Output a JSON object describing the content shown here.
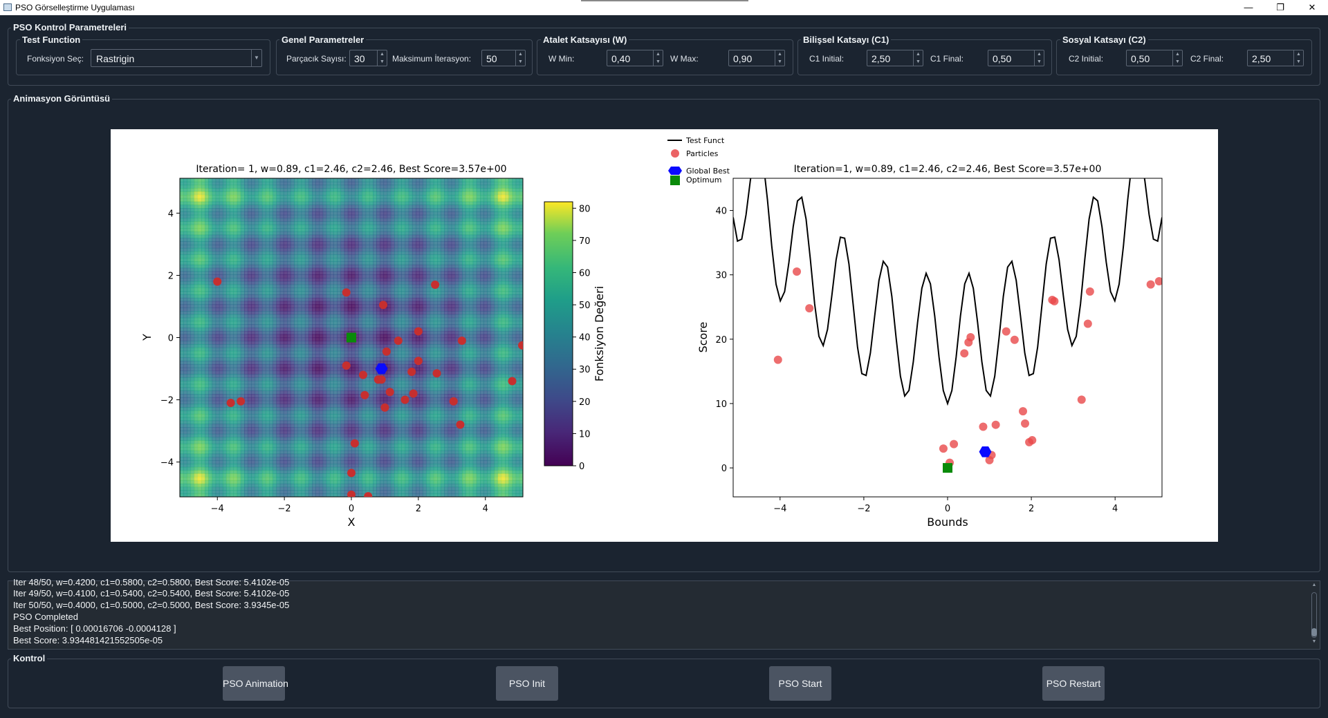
{
  "window": {
    "title": "PSO Görselleştirme Uygulaması",
    "minimize": "—",
    "restore": "❐",
    "close": "✕"
  },
  "controls": {
    "title": "PSO Kontrol Parametreleri",
    "test_function": {
      "title": "Test Function",
      "label": "Fonksiyon Seç:",
      "value": "Rastrigin"
    },
    "general": {
      "title": "Genel Parametreler",
      "particles_label": "Parçacık Sayısı:",
      "particles": "30",
      "iter_label": "Maksimum İterasyon:",
      "iter": "50"
    },
    "inertia": {
      "title": "Atalet Katsayısı (W)",
      "wmin_label": "W Min:",
      "wmin": "0,40",
      "wmax_label": "W Max:",
      "wmax": "0,90"
    },
    "cognitive": {
      "title": "Bilişsel Katsayı (C1)",
      "initial_label": "C1 Initial:",
      "initial": "2,50",
      "final_label": "C1 Final:",
      "final": "0,50"
    },
    "social": {
      "title": "Sosyal Katsayı (C2)",
      "initial_label": "C2 Initial:",
      "initial": "0,50",
      "final_label": "C2 Final:",
      "final": "2,50"
    }
  },
  "animation": {
    "title": "Animasyon Görüntüsü"
  },
  "chart_data": [
    {
      "type": "heatmap",
      "title": "Iteration= 1, w=0.89, c1=2.46, c2=2.46, Best Score=3.57e+00",
      "xlabel": "X",
      "ylabel": "Y",
      "xlim": [
        -5.12,
        5.12
      ],
      "ylim": [
        -5.12,
        5.12
      ],
      "xticks": [
        "−4",
        "−2",
        "0",
        "2",
        "4"
      ],
      "yticks": [
        "4",
        "2",
        "0",
        "−2",
        "−4"
      ],
      "colorbar": {
        "label": "Fonksiyon Değeri",
        "range": [
          0,
          82
        ],
        "ticks": [
          "80",
          "70",
          "60",
          "50",
          "40",
          "30",
          "20",
          "10",
          "0"
        ]
      },
      "colormap": "viridis",
      "particle_color": "#c62f2f",
      "particles": [
        [
          -4.0,
          1.8
        ],
        [
          -0.15,
          1.45
        ],
        [
          0.95,
          1.05
        ],
        [
          2.5,
          1.7
        ],
        [
          2.0,
          0.2
        ],
        [
          3.3,
          -0.1
        ],
        [
          5.1,
          -0.25
        ],
        [
          1.4,
          -0.1
        ],
        [
          1.05,
          -0.45
        ],
        [
          2.0,
          -0.75
        ],
        [
          -0.15,
          -0.9
        ],
        [
          0.35,
          -1.2
        ],
        [
          0.8,
          -1.35
        ],
        [
          1.8,
          -1.1
        ],
        [
          2.55,
          -1.15
        ],
        [
          1.15,
          -1.75
        ],
        [
          0.4,
          -1.85
        ],
        [
          1.6,
          -2.0
        ],
        [
          1.85,
          -1.8
        ],
        [
          1.0,
          -2.25
        ],
        [
          3.05,
          -2.05
        ],
        [
          -3.6,
          -2.1
        ],
        [
          -3.3,
          -2.05
        ],
        [
          4.8,
          -1.4
        ],
        [
          3.25,
          -2.8
        ],
        [
          0.1,
          -3.4
        ],
        [
          0.0,
          -4.35
        ],
        [
          0.0,
          -5.05
        ],
        [
          0.5,
          -5.1
        ],
        [
          0.9,
          -1.35
        ]
      ],
      "global_best": [
        0.9,
        -1.0
      ],
      "optimum": [
        0.0,
        0.0
      ],
      "legend": {
        "placement": "top-right",
        "entries": [
          "Test Funct",
          "Particles",
          "Global Best",
          "Optimum"
        ]
      }
    },
    {
      "type": "line",
      "title": "Iteration=1, w=0.89, c1=2.46, c2=2.46, Best Score=3.57e+00",
      "xlabel": "Bounds",
      "ylabel": "Score",
      "xlim": [
        -5.12,
        5.12
      ],
      "ylim": [
        -4.5,
        45
      ],
      "xticks": [
        "−4",
        "−2",
        "0",
        "2",
        "4"
      ],
      "yticks": [
        "40",
        "30",
        "20",
        "10",
        "0"
      ],
      "series": [
        {
          "name": "Test Funct",
          "function": "rastrigin_1d_plus_10"
        }
      ],
      "particles": [
        [
          -4.05,
          16.8
        ],
        [
          -3.6,
          30.5
        ],
        [
          -3.3,
          24.8
        ],
        [
          -0.1,
          3.0
        ],
        [
          0.05,
          0.8
        ],
        [
          0.15,
          3.7
        ],
        [
          0.4,
          17.8
        ],
        [
          0.5,
          19.5
        ],
        [
          0.55,
          20.3
        ],
        [
          0.85,
          6.4
        ],
        [
          1.0,
          1.2
        ],
        [
          1.05,
          2.0
        ],
        [
          1.15,
          6.7
        ],
        [
          1.4,
          21.2
        ],
        [
          1.6,
          19.9
        ],
        [
          1.8,
          8.8
        ],
        [
          1.85,
          6.9
        ],
        [
          1.95,
          4.0
        ],
        [
          2.02,
          4.3
        ],
        [
          2.5,
          26.1
        ],
        [
          2.55,
          25.9
        ],
        [
          3.2,
          10.6
        ],
        [
          3.35,
          22.4
        ],
        [
          3.4,
          27.4
        ],
        [
          4.85,
          28.5
        ],
        [
          5.05,
          29.0
        ]
      ],
      "global_best": [
        0.9,
        2.5
      ],
      "optimum": [
        0.0,
        0.0
      ]
    }
  ],
  "log": {
    "lines": [
      "Iter 48/50, w=0.4200, c1=0.5800, c2=0.5800, Best Score: 5.4102e-05",
      "Iter 49/50, w=0.4100, c1=0.5400, c2=0.5400, Best Score: 5.4102e-05",
      "Iter 50/50, w=0.4000, c1=0.5000, c2=0.5000, Best Score: 3.9345e-05",
      "PSO Completed",
      "Best Position: [ 0.00016706 -0.0004128 ]",
      "Best Score: 3.934481421552505e-05"
    ]
  },
  "kontrol": {
    "title": "Kontrol",
    "buttons": [
      "PSO Animation",
      "PSO Init",
      "PSO Start",
      "PSO Restart"
    ]
  }
}
